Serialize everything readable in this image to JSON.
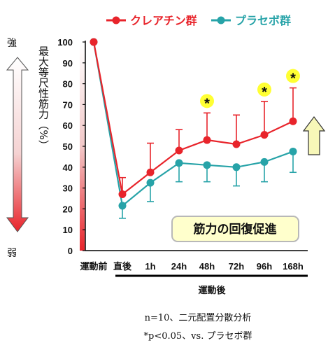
{
  "chart_data": {
    "type": "line",
    "categories": [
      "運動前",
      "直後",
      "1h",
      "24h",
      "48h",
      "72h",
      "96h",
      "168h"
    ],
    "series": [
      {
        "name": "クレアチン群",
        "color": "#e8242b",
        "values": [
          100,
          27,
          37.5,
          48,
          53,
          51,
          55.5,
          62
        ],
        "error_upper": [
          0,
          8,
          14,
          10,
          13,
          14,
          16,
          16
        ]
      },
      {
        "name": "プラセボ群",
        "color": "#27a3a8",
        "values": [
          100,
          21.5,
          32.5,
          42,
          41,
          40,
          42.5,
          47.5
        ],
        "error_lower": [
          0,
          6,
          9,
          9,
          8,
          9,
          9.5,
          10
        ]
      }
    ],
    "ylim": [
      0,
      100
    ],
    "yticks": [
      0,
      10,
      20,
      30,
      40,
      50,
      60,
      70,
      80,
      90,
      100
    ],
    "ylabel": "最大等尺性筋力（%）",
    "xlabel": "運動後",
    "significant_categories": [
      "48h",
      "96h",
      "168h"
    ],
    "significance_mark": "*",
    "legend_position": "top"
  },
  "labels": {
    "strong": "強",
    "weak": "弱",
    "recovery_box": "筋力の回復促進",
    "note_line1": "n=10、二元配置分散分析",
    "note_line2": "*p<0.05、vs. プラセボ群"
  },
  "colors": {
    "creatine": "#e8242b",
    "placebo": "#27a3a8",
    "star_highlight": "#ffff33",
    "recovery_box_fill": "#ffffcc",
    "recovery_box_border": "#b8b8b8",
    "arrow_fill": "#f7f7b8"
  }
}
